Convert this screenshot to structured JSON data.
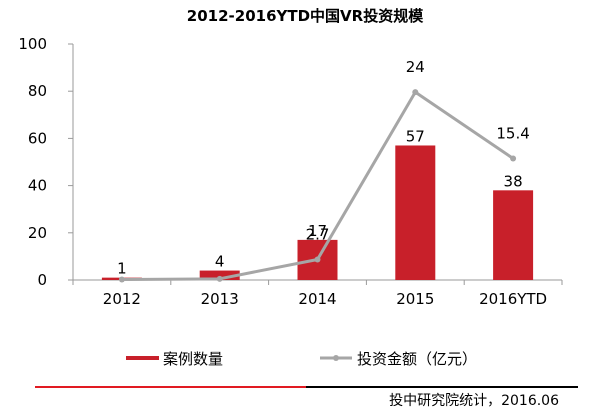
{
  "chart_data": {
    "type": "bar",
    "title": "2012-2016YTD中国VR投资规模",
    "categories": [
      "2012",
      "2013",
      "2014",
      "2015",
      "2016YTD"
    ],
    "ylim": [
      0,
      100
    ],
    "yticks": [
      0,
      20,
      40,
      60,
      80,
      100
    ],
    "grid": false,
    "legend_placement": "bottom",
    "series": [
      {
        "name": "案例数量",
        "type": "bar",
        "color": "#c8202a",
        "values": [
          1,
          4,
          17,
          57,
          38
        ],
        "labels": [
          "1",
          "4",
          "17",
          "57",
          "38"
        ]
      },
      {
        "name": "投资金额（亿元）",
        "type": "line",
        "color": "#a6a6a6",
        "values": [
          0.05,
          0.3,
          2.7,
          24,
          15.4
        ],
        "plot_values": [
          0.2,
          0.5,
          8.7,
          79.6,
          51.5
        ],
        "labels": [
          "",
          "",
          "2.7",
          "24",
          "15.4"
        ]
      }
    ]
  },
  "footer": {
    "source": "投中研究院统计，2016.06",
    "accent_color": "#e11a22",
    "rule_color": "#000000"
  }
}
